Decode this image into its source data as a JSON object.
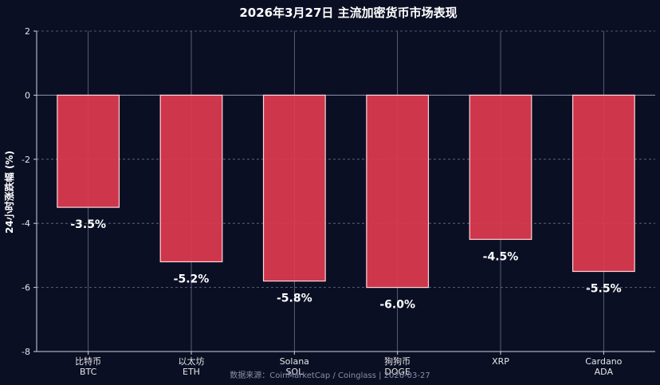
{
  "chart_data": {
    "type": "bar",
    "title": "2026年3月27日 主流加密货币市场表现",
    "ylabel": "24小时涨跌幅 (%)",
    "xlabel": "",
    "ylim": [
      -8,
      2
    ],
    "yticks": [
      2,
      0,
      -2,
      -4,
      -6,
      -8
    ],
    "grid": true,
    "categories": [
      {
        "name": "比特币",
        "symbol": "BTC"
      },
      {
        "name": "以太坊",
        "symbol": "ETH"
      },
      {
        "name": "Solana",
        "symbol": "SOL"
      },
      {
        "name": "狗狗币",
        "symbol": "DOGE"
      },
      {
        "name": "XRP",
        "symbol": ""
      },
      {
        "name": "Cardano",
        "symbol": "ADA"
      }
    ],
    "values": [
      -3.5,
      -5.2,
      -5.8,
      -6.0,
      -4.5,
      -5.5
    ],
    "labels": [
      "-3.5%",
      "-5.2%",
      "-5.8%",
      "-6.0%",
      "-4.5%",
      "-5.5%"
    ],
    "bar_color": "#e0394f",
    "source": "数据来源：CoinMarketCap / Coinglass | 2026-03-27"
  }
}
